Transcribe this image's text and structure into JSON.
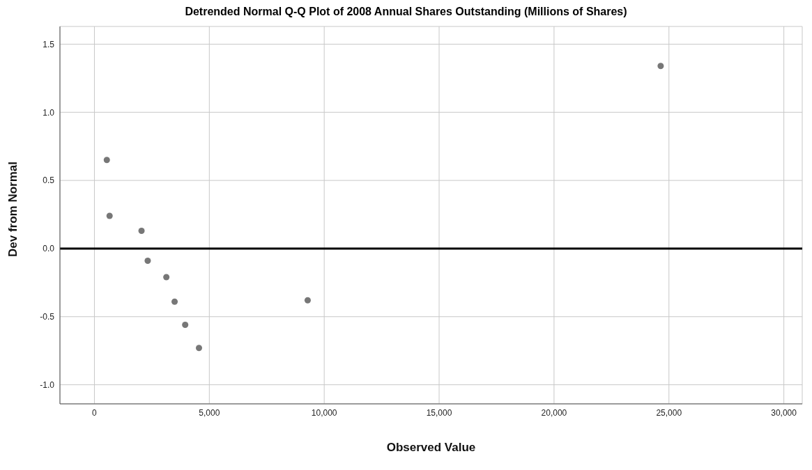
{
  "chart_data": {
    "type": "scatter",
    "title": "Detrended Normal Q-Q Plot of 2008 Annual Shares Outstanding  (Millions of Shares)",
    "xlabel": "Observed Value",
    "ylabel": "Dev from Normal",
    "series": [
      {
        "color": "#777777",
        "x": [
          540,
          660,
          2050,
          2320,
          3130,
          3490,
          3950,
          4550,
          9280,
          24640
        ],
        "values": [
          0.65,
          0.24,
          0.13,
          -0.09,
          -0.21,
          -0.39,
          -0.56,
          -0.73,
          -0.38,
          1.34
        ]
      }
    ],
    "xlim": [
      -1500,
      30800
    ],
    "xticks": [
      {
        "value": 0,
        "label": "0"
      },
      {
        "value": 5000,
        "label": "5,000"
      },
      {
        "value": 10000,
        "label": "10,000"
      },
      {
        "value": 15000,
        "label": "15,000"
      },
      {
        "value": 20000,
        "label": "20,000"
      },
      {
        "value": 25000,
        "label": "25,000"
      },
      {
        "value": 30000,
        "label": "30,000"
      }
    ],
    "ylim": [
      -1.14,
      1.63
    ],
    "yticks": [
      {
        "value": -1,
        "label": "-1.0"
      },
      {
        "value": -0.5,
        "label": "-0.5"
      },
      {
        "value": 0,
        "label": "0.0"
      },
      {
        "value": 0.5,
        "label": "0.5"
      },
      {
        "value": 1,
        "label": "1.0"
      },
      {
        "value": 1.5,
        "label": "1.5"
      }
    ],
    "ref_lines": [
      {
        "axis": "y",
        "value": 0,
        "color": "#000000"
      }
    ],
    "grid": true,
    "marker": "circle",
    "legend": false
  }
}
